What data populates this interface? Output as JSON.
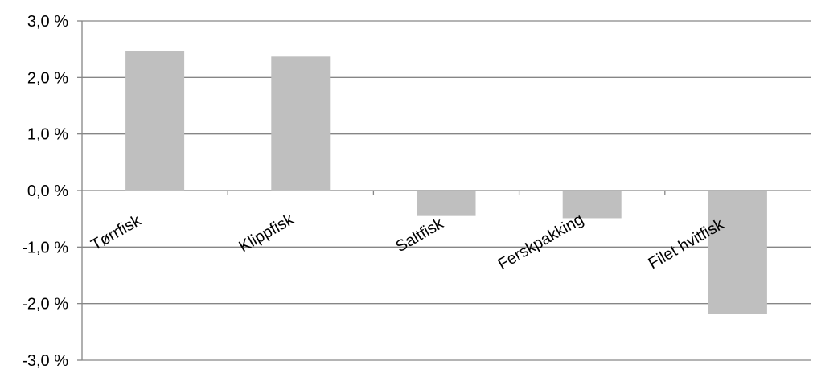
{
  "chart_data": {
    "type": "bar",
    "title": "",
    "xlabel": "",
    "ylabel": "",
    "categories": [
      "Tørrfisk",
      "Klippfisk",
      "Saltfisk",
      "Ferskpakking",
      "Filet hvitfisk"
    ],
    "values": [
      2.47,
      2.37,
      -0.45,
      -0.49,
      -2.18
    ],
    "ylim": [
      -3.0,
      3.0
    ],
    "yticks": [
      3.0,
      2.0,
      1.0,
      0.0,
      -1.0,
      -2.0,
      -3.0
    ],
    "ytick_labels": [
      "3,0 %",
      "2,0 %",
      "1,0 %",
      "0,0 %",
      "-1,0 %",
      "-2,0 %",
      "-3,0 %"
    ],
    "grid": true,
    "legend": "none",
    "bar_color": "#bfbfbf",
    "grid_color": "#868686",
    "axis_color": "#868686"
  }
}
